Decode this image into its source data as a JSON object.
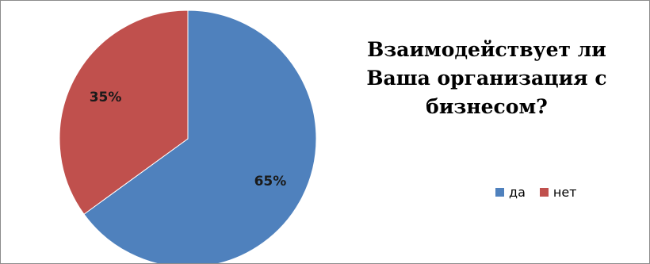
{
  "chart_data": {
    "type": "pie",
    "title": "Взаимодействует ли Ваша организация с бизнесом?",
    "categories": [
      "да",
      "нет"
    ],
    "values": [
      65,
      35
    ],
    "data_labels": [
      "65%",
      "35%"
    ],
    "colors": [
      "#4f81bd",
      "#c0504d"
    ],
    "legend_position": "right"
  }
}
